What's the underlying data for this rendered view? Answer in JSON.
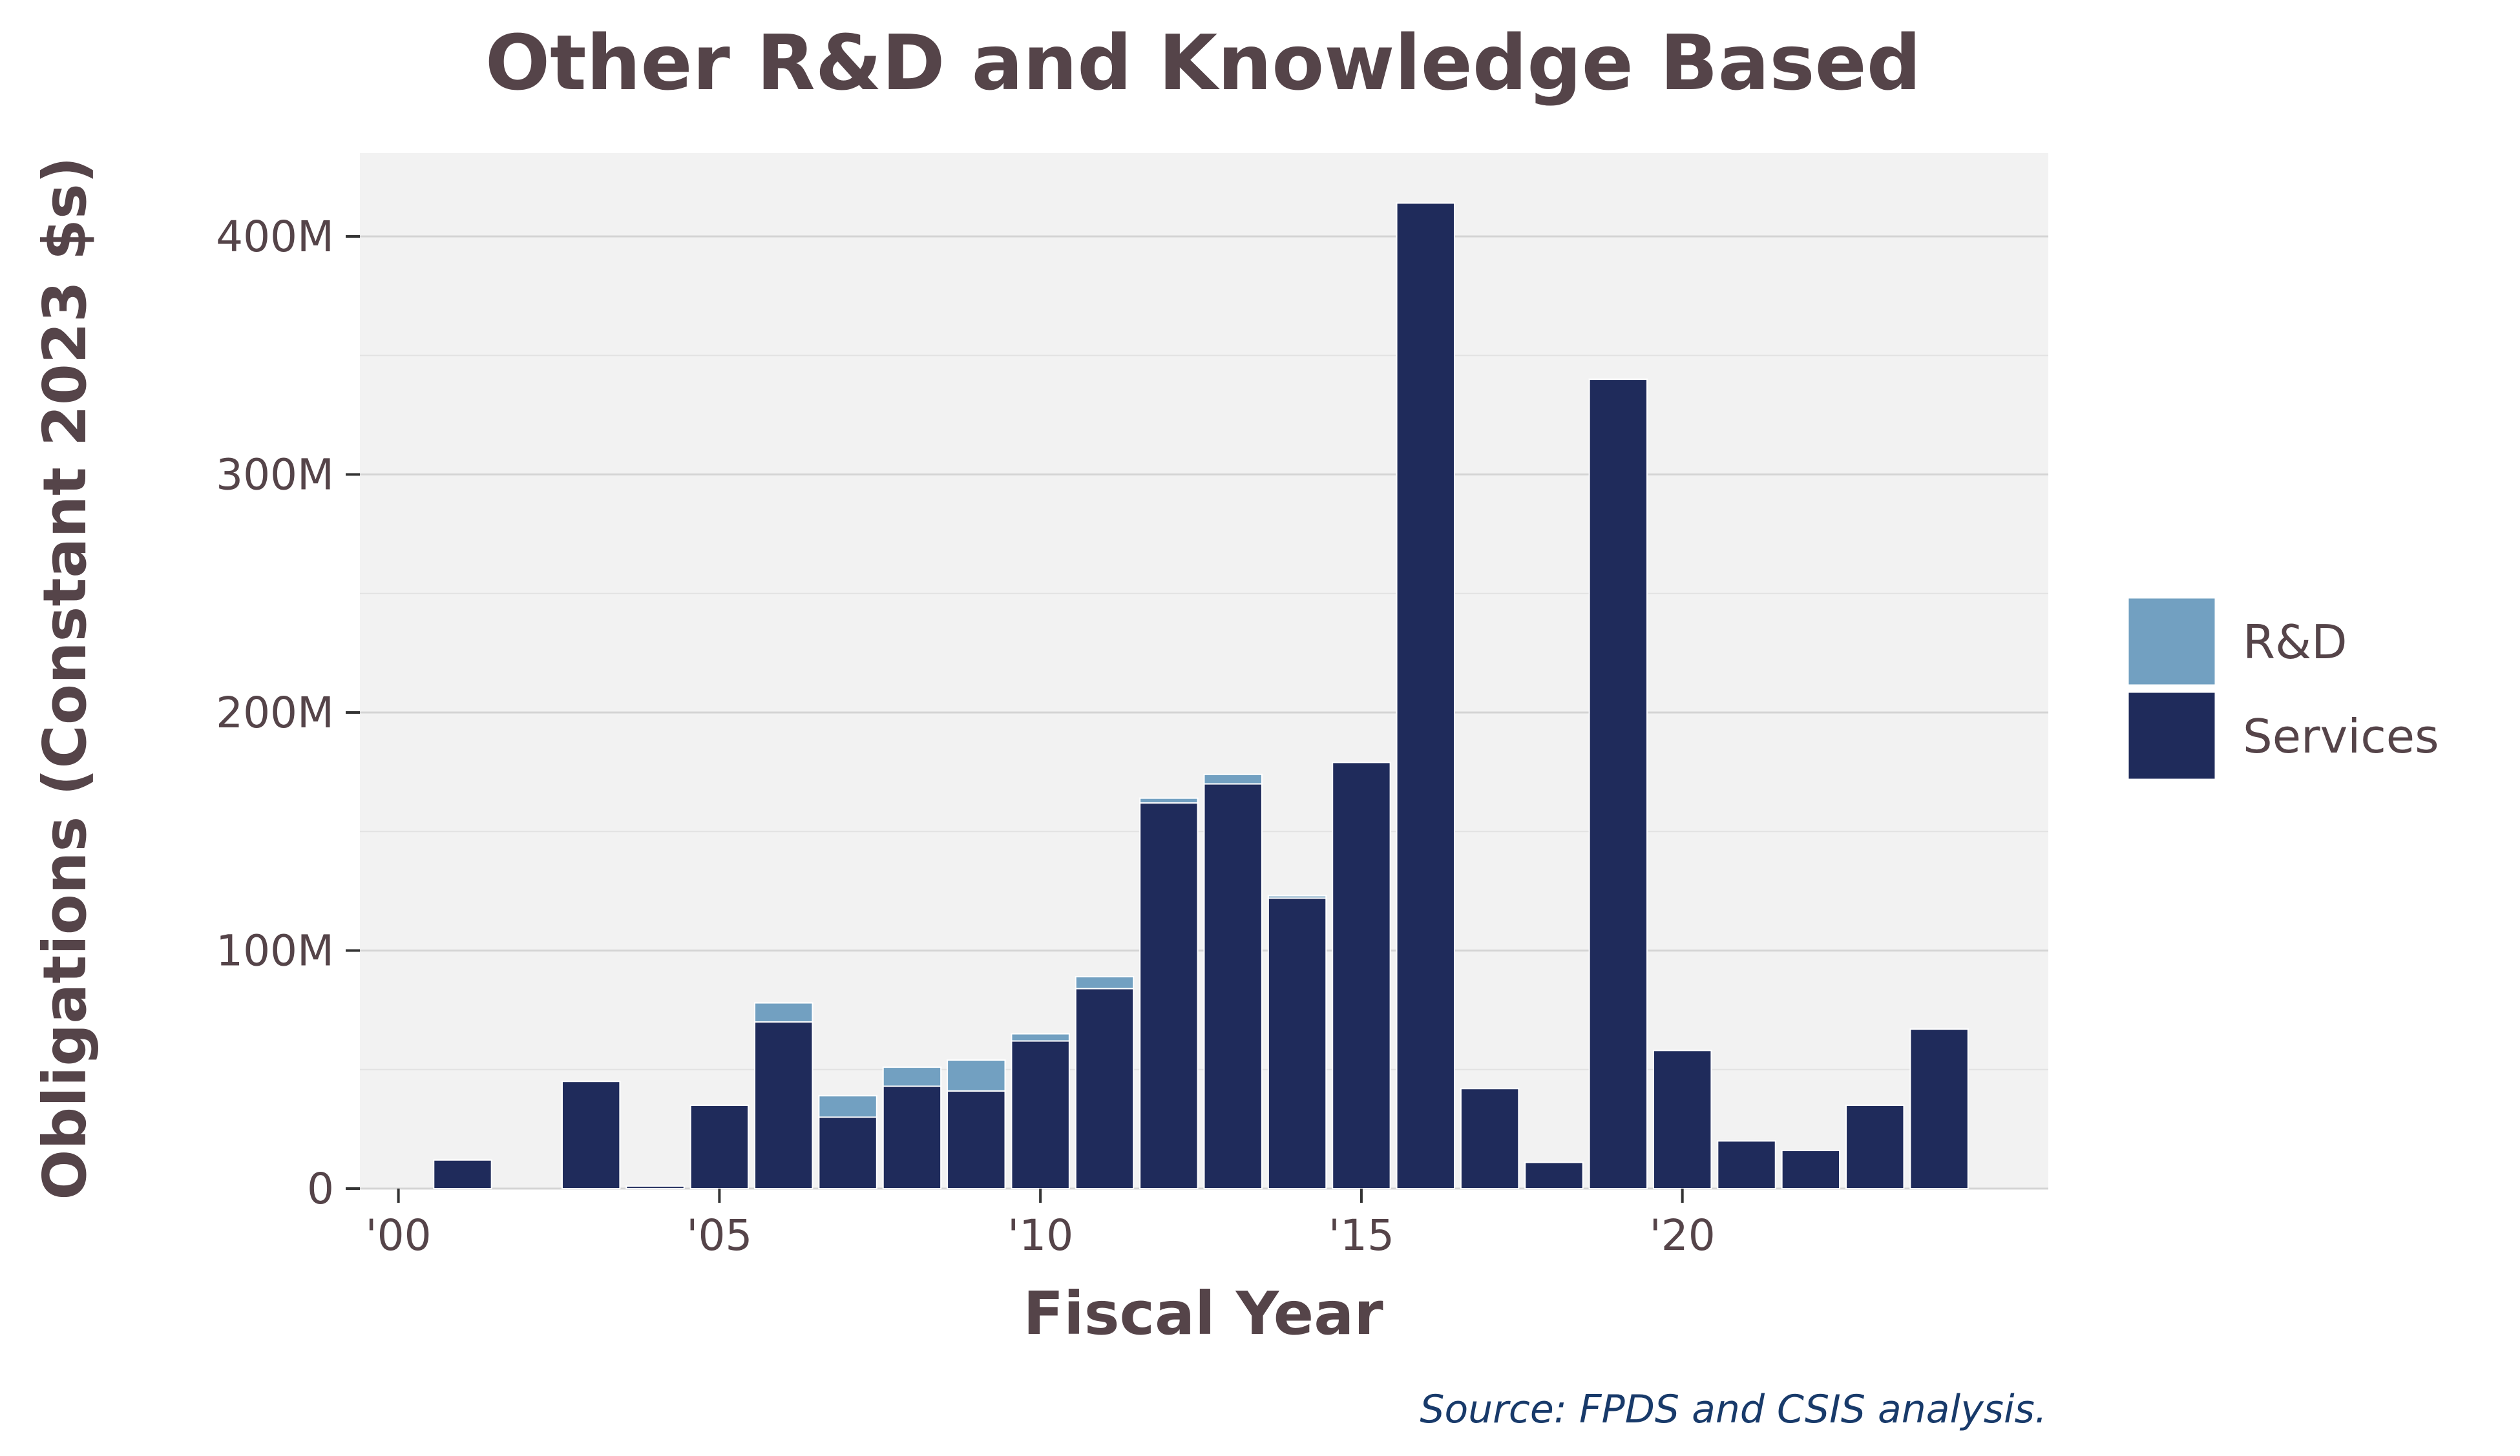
{
  "chart_data": {
    "type": "bar",
    "stacked": true,
    "title": "Other R&D and Knowledge Based",
    "xlabel": "Fiscal Year",
    "ylabel": "Obligations (Constant 2023 $s)",
    "source": "Source: FPDS and CSIS analysis.",
    "x": [
      2001,
      2003,
      2004,
      2005,
      2006,
      2007,
      2008,
      2009,
      2010,
      2011,
      2012,
      2013,
      2014,
      2015,
      2016,
      2017,
      2018,
      2019,
      2020,
      2021,
      2022,
      2023,
      2024
    ],
    "series": [
      {
        "name": "Services",
        "color": "#1f2b5b",
        "values": [
          12,
          45,
          1,
          35,
          70,
          30,
          43,
          41,
          62,
          84,
          162,
          170,
          122,
          179,
          414,
          42,
          11,
          340,
          58,
          20,
          16,
          35,
          67
        ]
      },
      {
        "name": "R&D",
        "color": "#72a0c1",
        "values": [
          0,
          0,
          0,
          0,
          8,
          9,
          8,
          13,
          3,
          5,
          2,
          4,
          1,
          0,
          0,
          0,
          0,
          0,
          0,
          0,
          0,
          0,
          0
        ]
      }
    ],
    "y_unit": "M",
    "ylim": [
      0,
      435
    ],
    "yticks": [
      0,
      100,
      200,
      300,
      400
    ],
    "ytick_labels": [
      "0",
      "100M",
      "200M",
      "300M",
      "400M"
    ],
    "xlim": [
      1999.4,
      2025.7
    ],
    "xticks": [
      2000,
      2005,
      2010,
      2015,
      2020
    ],
    "xtick_labels": [
      "'00",
      "'05",
      "'10",
      "'15",
      "'20"
    ],
    "grid": true,
    "legend_position": "right",
    "legend_order": [
      "R&D",
      "Services"
    ],
    "panel_background": "#f2f2f2",
    "gridline_color": "#d4d4d4"
  }
}
